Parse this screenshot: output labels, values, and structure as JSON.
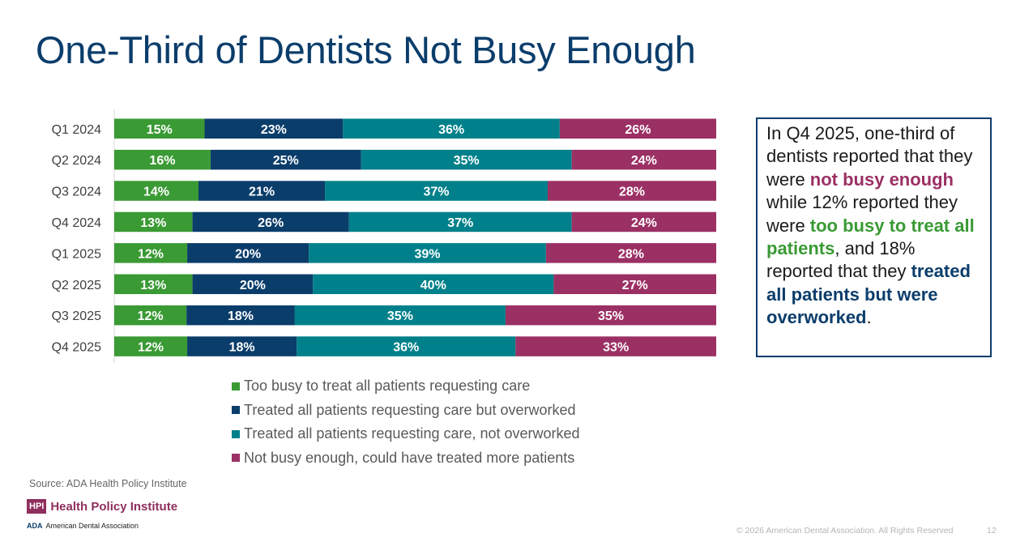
{
  "title": "One-Third of Dentists Not Busy Enough",
  "colors": {
    "too_busy": "#3a9a34",
    "overworked": "#0b3d6b",
    "not_overworked": "#00808a",
    "not_busy": "#9b3064",
    "title": "#0b3d6b"
  },
  "chart_data": {
    "type": "bar",
    "orientation": "horizontal",
    "stacked": true,
    "percent_stacked": true,
    "categories": [
      "Q1 2024",
      "Q2 2024",
      "Q3 2024",
      "Q4 2024",
      "Q1 2025",
      "Q2 2025",
      "Q3 2025",
      "Q4 2025"
    ],
    "series": [
      {
        "name": "Too busy to treat all patients requesting care",
        "color": "#3a9a34",
        "values": [
          15,
          16,
          14,
          13,
          12,
          13,
          12,
          12
        ]
      },
      {
        "name": "Treated all patients requesting care but overworked",
        "color": "#0b3d6b",
        "values": [
          23,
          25,
          21,
          26,
          20,
          20,
          18,
          18
        ]
      },
      {
        "name": "Treated all patients requesting care, not overworked",
        "color": "#00808a",
        "values": [
          36,
          35,
          37,
          37,
          39,
          40,
          35,
          36
        ]
      },
      {
        "name": "Not busy enough, could have treated more patients",
        "color": "#9b3064",
        "values": [
          26,
          24,
          28,
          24,
          28,
          27,
          35,
          33
        ]
      }
    ],
    "data_label_suffix": "%",
    "legend_position": "bottom",
    "grid": false
  },
  "callout": {
    "t1": "In Q4 2025, one-third of dentists reported that they were ",
    "h1": "not busy enough",
    "t2": " while 12% reported they were ",
    "h2": "too busy to treat all patients",
    "t3": ", and 18% reported that they ",
    "h3": "treated all patients but were overworked",
    "t4": "."
  },
  "source": "Source: ADA Health Policy Institute",
  "logos": {
    "hpi_mark": "HPI",
    "hpi_name": "Health Policy Institute",
    "ada_mark": "ADA",
    "ada_name": "American Dental Association"
  },
  "footer": {
    "copyright": "© 2026 American Dental Association. All Rights Reserved",
    "page_number": "12"
  }
}
